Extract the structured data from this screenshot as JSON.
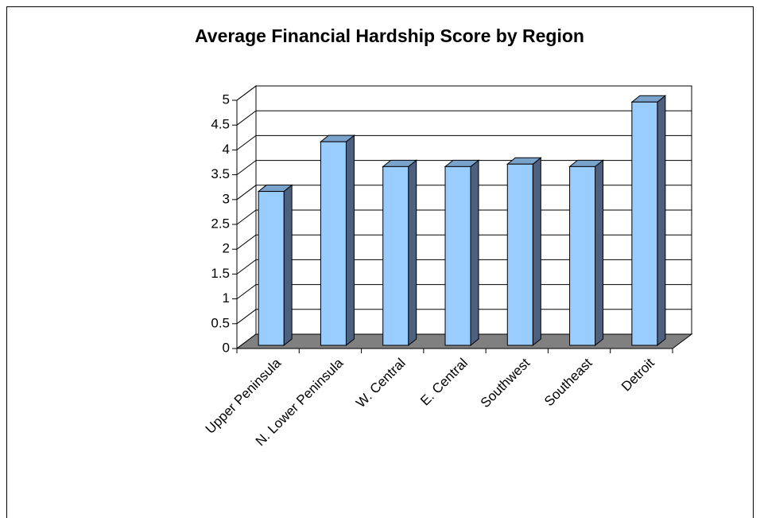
{
  "chart_data": {
    "type": "bar",
    "title": "Average Financial Hardship Score by Region",
    "categories": [
      "Upper Peninsula",
      "N. Lower Peninsula",
      "W. Central",
      "E. Central",
      "Southwest",
      "Southeast",
      "Detroit"
    ],
    "values": [
      3.1,
      4.1,
      3.6,
      3.6,
      3.65,
      3.6,
      4.9
    ],
    "color": "#99ccff",
    "ylim": [
      0,
      5
    ],
    "yticks": [
      0,
      0.5,
      1,
      1.5,
      2,
      2.5,
      3,
      3.5,
      4,
      4.5,
      5
    ],
    "grid": true
  }
}
